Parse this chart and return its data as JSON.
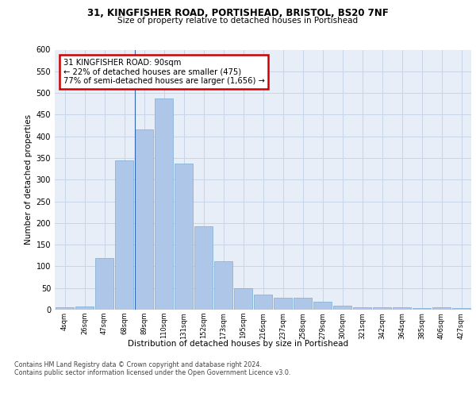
{
  "title1": "31, KINGFISHER ROAD, PORTISHEAD, BRISTOL, BS20 7NF",
  "title2": "Size of property relative to detached houses in Portishead",
  "xlabel": "Distribution of detached houses by size in Portishead",
  "ylabel": "Number of detached properties",
  "categories": [
    "4sqm",
    "26sqm",
    "47sqm",
    "68sqm",
    "89sqm",
    "110sqm",
    "131sqm",
    "152sqm",
    "173sqm",
    "195sqm",
    "216sqm",
    "237sqm",
    "258sqm",
    "279sqm",
    "300sqm",
    "321sqm",
    "342sqm",
    "364sqm",
    "385sqm",
    "406sqm",
    "427sqm"
  ],
  "values": [
    5,
    7,
    120,
    345,
    415,
    487,
    337,
    192,
    112,
    50,
    35,
    27,
    27,
    18,
    10,
    5,
    5,
    5,
    4,
    5,
    4
  ],
  "bar_color": "#aec6e8",
  "bar_edge_color": "#7aadd4",
  "highlight_index": 4,
  "highlight_line_color": "#3366aa",
  "annotation_text": "31 KINGFISHER ROAD: 90sqm\n← 22% of detached houses are smaller (475)\n77% of semi-detached houses are larger (1,656) →",
  "annotation_box_color": "#ffffff",
  "annotation_border_color": "#cc0000",
  "ylim": [
    0,
    600
  ],
  "yticks": [
    0,
    50,
    100,
    150,
    200,
    250,
    300,
    350,
    400,
    450,
    500,
    550,
    600
  ],
  "grid_color": "#c8d4e8",
  "background_color": "#e8eef8",
  "footer1": "Contains HM Land Registry data © Crown copyright and database right 2024.",
  "footer2": "Contains public sector information licensed under the Open Government Licence v3.0."
}
